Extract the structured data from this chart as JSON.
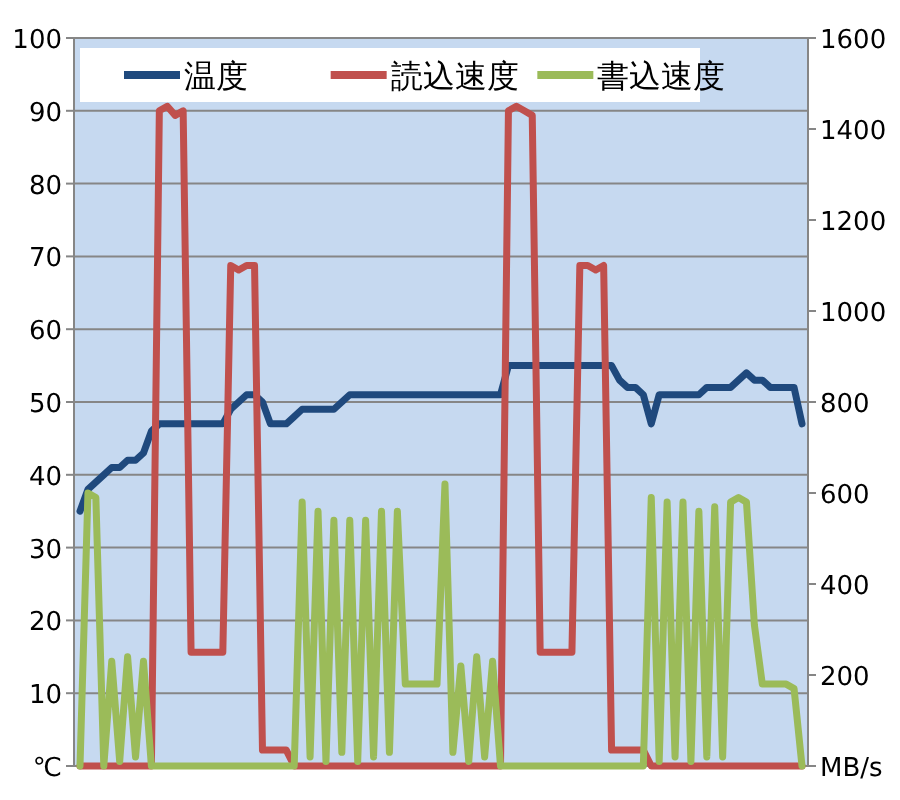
{
  "chart_data": {
    "type": "line",
    "categories": [
      null,
      null,
      null,
      null,
      null,
      null,
      null,
      null,
      null,
      null,
      null,
      null,
      null,
      null,
      null,
      null,
      null,
      null,
      null,
      null,
      null,
      null,
      null,
      null,
      null,
      null,
      null,
      null,
      null,
      null,
      null,
      null,
      null,
      null,
      null,
      null,
      null,
      null,
      null,
      null,
      null,
      null,
      null,
      null,
      null,
      null,
      null,
      null,
      null,
      null,
      null,
      null,
      null,
      null,
      null,
      null,
      null,
      null,
      null,
      null,
      null,
      null,
      null,
      null,
      null,
      null,
      null,
      null,
      null,
      null,
      null,
      null,
      null,
      null,
      null,
      null,
      null,
      null,
      null,
      null,
      null,
      null,
      null,
      null,
      null,
      null,
      null,
      null,
      null,
      null,
      null,
      null
    ],
    "series": [
      {
        "name": "温度",
        "color": "#1f497d",
        "values": [
          35,
          38,
          39,
          40,
          41,
          41,
          42,
          42,
          43,
          46,
          47,
          47,
          47,
          47,
          47,
          47,
          47,
          47,
          47,
          49,
          50,
          51,
          51,
          50,
          47,
          47,
          47,
          48,
          49,
          49,
          49,
          49,
          49,
          50,
          51,
          51,
          51,
          51,
          51,
          51,
          51,
          51,
          51,
          51,
          51,
          51,
          51,
          51,
          51,
          51,
          51,
          51,
          51,
          51,
          55,
          55,
          55,
          55,
          55,
          55,
          55,
          55,
          55,
          55,
          55,
          55,
          55,
          55,
          53,
          52,
          52,
          51,
          47,
          51,
          51,
          51,
          51,
          51,
          51,
          52,
          52,
          52,
          52,
          53,
          54,
          53,
          53,
          52,
          52,
          52,
          52,
          47
        ]
      },
      {
        "name": "読込速度",
        "color": "#c0504d",
        "axis": "y2",
        "values": [
          0,
          0,
          0,
          0,
          0,
          0,
          0,
          0,
          0,
          0,
          1440,
          1450,
          1430,
          1440,
          250,
          250,
          250,
          250,
          250,
          1100,
          1090,
          1100,
          1100,
          35,
          35,
          35,
          35,
          0,
          0,
          0,
          0,
          0,
          0,
          0,
          0,
          0,
          0,
          0,
          0,
          0,
          0,
          0,
          0,
          0,
          0,
          0,
          0,
          0,
          0,
          0,
          0,
          0,
          0,
          0,
          1440,
          1450,
          1440,
          1430,
          250,
          250,
          250,
          250,
          250,
          1100,
          1100,
          1090,
          1100,
          35,
          35,
          35,
          35,
          35,
          0,
          0,
          0,
          0,
          0,
          0,
          0,
          0,
          0,
          0,
          0,
          0,
          0,
          0,
          0,
          0,
          0,
          0,
          0,
          0
        ]
      },
      {
        "name": "書込速度",
        "color": "#9bbb59",
        "axis": "y2",
        "values": [
          0,
          600,
          590,
          0,
          230,
          10,
          240,
          20,
          230,
          0,
          0,
          0,
          0,
          0,
          0,
          0,
          0,
          0,
          0,
          0,
          0,
          0,
          0,
          0,
          0,
          0,
          0,
          0,
          580,
          20,
          560,
          10,
          540,
          30,
          540,
          10,
          540,
          20,
          560,
          30,
          560,
          180,
          180,
          180,
          180,
          180,
          620,
          30,
          220,
          10,
          240,
          20,
          230,
          0,
          0,
          0,
          0,
          0,
          0,
          0,
          0,
          0,
          0,
          0,
          0,
          0,
          0,
          0,
          0,
          0,
          0,
          0,
          590,
          10,
          580,
          20,
          580,
          10,
          560,
          20,
          570,
          20,
          580,
          590,
          580,
          310,
          180,
          180,
          180,
          180,
          170,
          0
        ]
      }
    ],
    "ylim": [
      0,
      100
    ],
    "yticks": [
      {
        "value": 0,
        "label": "℃"
      },
      10,
      20,
      30,
      40,
      50,
      60,
      70,
      80,
      90,
      100
    ],
    "y2lim": [
      0,
      1600
    ],
    "y2ticks": [
      {
        "value": 0,
        "label": "MB/s"
      },
      200,
      400,
      600,
      800,
      1000,
      1200,
      1400,
      1600
    ],
    "grid": "y",
    "legend": "top"
  }
}
